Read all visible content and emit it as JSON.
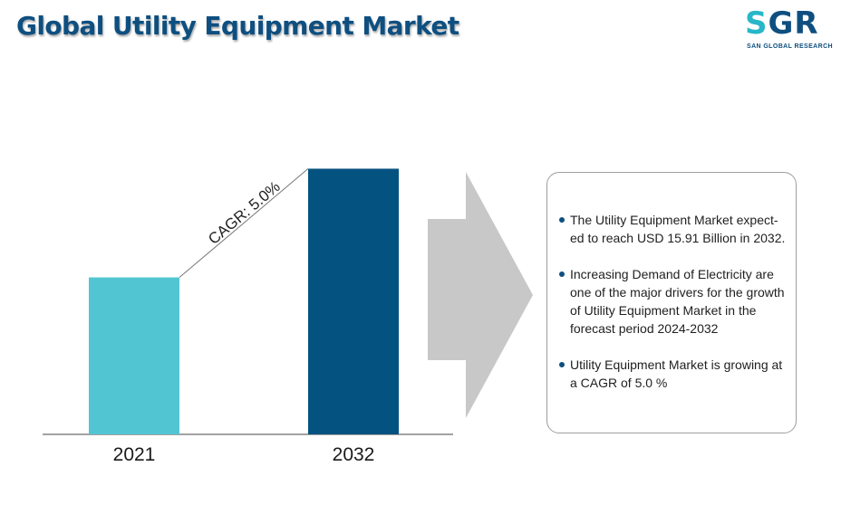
{
  "header": {
    "title": "Global Utility Equipment Market"
  },
  "logo": {
    "mark_s": "S",
    "mark_gr": "GR",
    "subtitle": "SAN GLOBAL RESEARCH"
  },
  "chart_data": {
    "type": "bar",
    "categories": [
      "2021",
      "2032"
    ],
    "values": [
      9.4,
      15.91
    ],
    "ylim": [
      0,
      16.15
    ],
    "colors": [
      "#52c5d2",
      "#04527f"
    ],
    "annotation": "CAGR: 5.0%",
    "title": "",
    "xlabel": "",
    "ylabel": "",
    "grid": false
  },
  "info": {
    "items": [
      {
        "text": "The Utility Equipment Market expect-ed to reach USD 15.91 Billion in 2032."
      },
      {
        "text": "Increasing Demand of Electricity are one of the major drivers for the growth of Utility Equipment Market in the forecast period 2024-2032"
      },
      {
        "text": "Utility Equipment Market is growing at a CAGR of 5.0 %"
      }
    ]
  },
  "colors": {
    "accent": "#0e4f80",
    "bar_light": "#52c5d2",
    "bar_dark": "#04527f",
    "arrow": "#c8c8c8"
  }
}
